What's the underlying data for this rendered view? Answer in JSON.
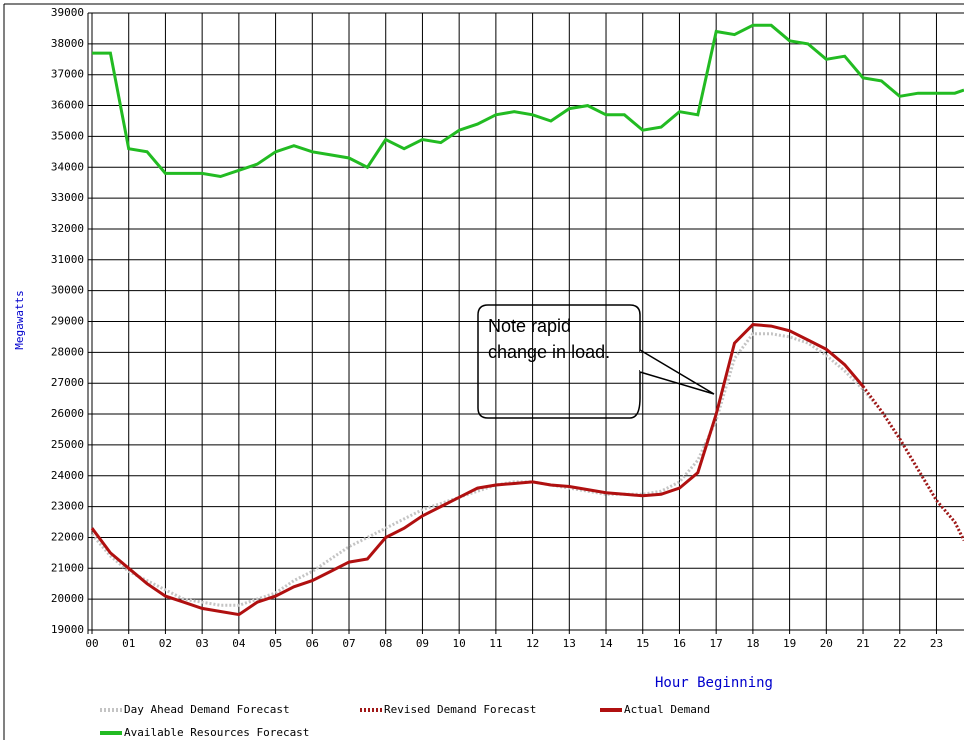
{
  "chart_data": {
    "type": "line",
    "y_label": "Megawatts",
    "x_label": "Hour Beginning",
    "annotation": "Note rapid change in load.",
    "xlim": [
      0,
      23.75
    ],
    "ylim": [
      19000,
      39000
    ],
    "xticks": [
      {
        "value": 0,
        "label": "00"
      },
      {
        "value": 1,
        "label": "01"
      },
      {
        "value": 2,
        "label": "02"
      },
      {
        "value": 3,
        "label": "03"
      },
      {
        "value": 4,
        "label": "04"
      },
      {
        "value": 5,
        "label": "05"
      },
      {
        "value": 6,
        "label": "06"
      },
      {
        "value": 7,
        "label": "07"
      },
      {
        "value": 8,
        "label": "08"
      },
      {
        "value": 9,
        "label": "09"
      },
      10,
      11,
      12,
      13,
      14,
      15,
      16,
      17,
      18,
      19,
      20,
      21,
      22,
      23
    ],
    "yticks": [
      19000,
      20000,
      21000,
      22000,
      23000,
      24000,
      25000,
      26000,
      27000,
      28000,
      29000,
      30000,
      31000,
      32000,
      33000,
      34000,
      35000,
      36000,
      37000,
      38000,
      39000
    ],
    "grid": true,
    "x": [
      0,
      0.5,
      1,
      1.5,
      2,
      2.5,
      3,
      3.5,
      4,
      4.5,
      5,
      5.5,
      6,
      6.5,
      7,
      7.5,
      8,
      8.5,
      9,
      9.5,
      10,
      10.5,
      11,
      11.5,
      12,
      12.5,
      13,
      13.5,
      14,
      14.5,
      15,
      15.5,
      16,
      16.5,
      17,
      17.5,
      18,
      18.5,
      19,
      19.5,
      20,
      20.5,
      21,
      21.5,
      22,
      22.5,
      23,
      23.5,
      23.75
    ],
    "series": [
      {
        "name": "Day Ahead Demand Forecast",
        "color": "#c4c4c4",
        "style": "dotted",
        "values": [
          22100,
          21400,
          20900,
          20600,
          20300,
          20000,
          19900,
          19800,
          19800,
          20000,
          20200,
          20600,
          20900,
          21300,
          21700,
          22000,
          22300,
          22600,
          22900,
          23100,
          23300,
          23500,
          23700,
          23800,
          23800,
          23700,
          23600,
          23500,
          23400,
          23400,
          23400,
          23500,
          23800,
          24500,
          25800,
          27800,
          28600,
          28600,
          28500,
          28300,
          27900,
          27400,
          26800,
          26100,
          25200,
          24200,
          23200,
          22500,
          21900
        ]
      },
      {
        "name": "Revised Demand Forecast",
        "color": "#a01818",
        "style": "dotted",
        "values": [
          null,
          null,
          null,
          null,
          null,
          null,
          null,
          null,
          null,
          null,
          null,
          null,
          null,
          null,
          null,
          null,
          null,
          null,
          null,
          null,
          null,
          null,
          null,
          null,
          null,
          null,
          null,
          null,
          null,
          null,
          null,
          null,
          null,
          null,
          null,
          null,
          null,
          null,
          null,
          null,
          null,
          null,
          26900,
          26100,
          25200,
          24200,
          23200,
          22500,
          21900
        ]
      },
      {
        "name": "Actual Demand",
        "color": "#b01010",
        "style": "solid",
        "values": [
          22300,
          21500,
          21000,
          20500,
          20100,
          19900,
          19700,
          19600,
          19500,
          19900,
          20100,
          20400,
          20600,
          20900,
          21200,
          21300,
          22000,
          22300,
          22700,
          23000,
          23300,
          23600,
          23700,
          23750,
          23800,
          23700,
          23650,
          23550,
          23450,
          23400,
          23350,
          23400,
          23600,
          24100,
          26000,
          28300,
          28900,
          28850,
          28700,
          28400,
          28100,
          27600,
          26900,
          null,
          null,
          null,
          null,
          null,
          null
        ]
      },
      {
        "name": "Available Resources Forecast",
        "color": "#22bb22",
        "style": "solid",
        "values": [
          37700,
          37700,
          34600,
          34500,
          33800,
          33800,
          33800,
          33700,
          33900,
          34100,
          34500,
          34700,
          34500,
          34400,
          34300,
          34000,
          34900,
          34600,
          34900,
          34800,
          35200,
          35400,
          35700,
          35800,
          35700,
          35500,
          35900,
          36000,
          35700,
          35700,
          35200,
          35300,
          35800,
          35700,
          38400,
          38300,
          38600,
          38600,
          38100,
          38000,
          37500,
          37600,
          36900,
          36800,
          36300,
          36400,
          36400,
          36400,
          36500
        ]
      }
    ]
  }
}
